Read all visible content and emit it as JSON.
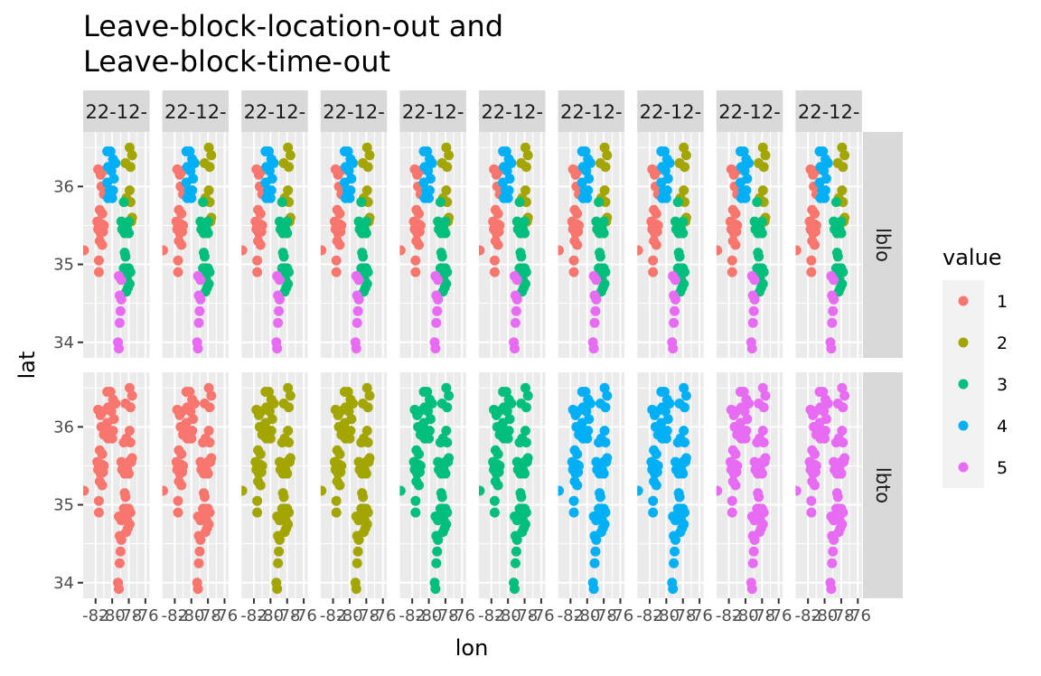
{
  "chart_data": {
    "type": "scatter",
    "title": [
      "Leave-block-location-out and",
      "Leave-block-time-out"
    ],
    "xlabel": "lon",
    "ylabel": "lat",
    "xlim": [
      -83.5,
      -75.5
    ],
    "ylim": [
      33.8,
      36.7
    ],
    "x_ticks": [
      -82,
      -80,
      -78,
      -76
    ],
    "x_tick_labels": [
      "-82",
      "-80",
      "-78",
      "-76"
    ],
    "y_ticks": [
      34,
      35,
      36
    ],
    "y_tick_labels": [
      "34",
      "35",
      "36"
    ],
    "grid": true,
    "panel_background": "#ebebeb",
    "column_strip_labels": [
      "22-12-",
      "22-12-",
      "22-12-",
      "22-12-",
      "22-12-",
      "22-12-",
      "22-12-",
      "22-12-",
      "22-12-",
      "22-12-"
    ],
    "row_strip_labels": [
      "lblo",
      "lbto"
    ],
    "legend": {
      "title": "value",
      "position": "right",
      "entries": [
        {
          "label": "1",
          "color": "#F8766D"
        },
        {
          "label": "2",
          "color": "#A3A500"
        },
        {
          "label": "3",
          "color": "#00BF7D"
        },
        {
          "label": "4",
          "color": "#00B0F6"
        },
        {
          "label": "5",
          "color": "#E76BF3"
        }
      ]
    },
    "stations": [
      {
        "lon": -83.4,
        "lat": 35.18
      },
      {
        "lon": -81.7,
        "lat": 36.22
      },
      {
        "lon": -81.4,
        "lat": 36.15
      },
      {
        "lon": -81.1,
        "lat": 36.2
      },
      {
        "lon": -81.3,
        "lat": 36.0
      },
      {
        "lon": -81.0,
        "lat": 35.9
      },
      {
        "lon": -81.5,
        "lat": 35.7
      },
      {
        "lon": -81.2,
        "lat": 35.65
      },
      {
        "lon": -81.8,
        "lat": 35.55
      },
      {
        "lon": -81.6,
        "lat": 35.5
      },
      {
        "lon": -81.3,
        "lat": 35.52
      },
      {
        "lon": -81.0,
        "lat": 35.5
      },
      {
        "lon": -81.7,
        "lat": 35.45
      },
      {
        "lon": -81.4,
        "lat": 35.4
      },
      {
        "lon": -81.1,
        "lat": 35.42
      },
      {
        "lon": -81.5,
        "lat": 35.3
      },
      {
        "lon": -81.2,
        "lat": 35.25
      },
      {
        "lon": -81.6,
        "lat": 35.05
      },
      {
        "lon": -81.6,
        "lat": 34.9
      },
      {
        "lon": -80.6,
        "lat": 36.45
      },
      {
        "lon": -80.2,
        "lat": 36.45
      },
      {
        "lon": -79.9,
        "lat": 36.35
      },
      {
        "lon": -80.5,
        "lat": 36.25
      },
      {
        "lon": -80.1,
        "lat": 36.2
      },
      {
        "lon": -79.8,
        "lat": 36.1
      },
      {
        "lon": -80.6,
        "lat": 36.05
      },
      {
        "lon": -80.3,
        "lat": 35.95
      },
      {
        "lon": -79.9,
        "lat": 35.95
      },
      {
        "lon": -80.5,
        "lat": 35.85
      },
      {
        "lon": -80.0,
        "lat": 35.85
      },
      {
        "lon": -79.6,
        "lat": 36.3
      },
      {
        "lon": -77.9,
        "lat": 36.5
      },
      {
        "lon": -77.6,
        "lat": 36.4
      },
      {
        "lon": -78.4,
        "lat": 36.3
      },
      {
        "lon": -77.8,
        "lat": 36.25
      },
      {
        "lon": -77.9,
        "lat": 35.95
      },
      {
        "lon": -78.3,
        "lat": 35.85
      },
      {
        "lon": -77.8,
        "lat": 35.8
      },
      {
        "lon": -78.6,
        "lat": 35.8
      },
      {
        "lon": -77.6,
        "lat": 35.6
      },
      {
        "lon": -77.7,
        "lat": 35.55
      },
      {
        "lon": -78.9,
        "lat": 35.55
      },
      {
        "lon": -78.6,
        "lat": 35.5
      },
      {
        "lon": -78.3,
        "lat": 35.5
      },
      {
        "lon": -78.0,
        "lat": 35.55
      },
      {
        "lon": -78.8,
        "lat": 35.45
      },
      {
        "lon": -78.5,
        "lat": 35.4
      },
      {
        "lon": -78.2,
        "lat": 35.45
      },
      {
        "lon": -78.0,
        "lat": 35.4
      },
      {
        "lon": -78.5,
        "lat": 35.15
      },
      {
        "lon": -78.4,
        "lat": 35.1
      },
      {
        "lon": -78.6,
        "lat": 34.95
      },
      {
        "lon": -78.3,
        "lat": 34.95
      },
      {
        "lon": -78.0,
        "lat": 34.95
      },
      {
        "lon": -77.8,
        "lat": 34.9
      },
      {
        "lon": -78.5,
        "lat": 34.85
      },
      {
        "lon": -78.2,
        "lat": 34.8
      },
      {
        "lon": -77.9,
        "lat": 34.75
      },
      {
        "lon": -78.3,
        "lat": 34.65
      },
      {
        "lon": -78.1,
        "lat": 34.7
      },
      {
        "lon": -79.2,
        "lat": 34.85
      },
      {
        "lon": -78.9,
        "lat": 34.8
      },
      {
        "lon": -79.1,
        "lat": 34.6
      },
      {
        "lon": -78.9,
        "lat": 34.55
      },
      {
        "lon": -79.0,
        "lat": 34.4
      },
      {
        "lon": -79.1,
        "lat": 34.25
      },
      {
        "lon": -79.3,
        "lat": 34.0
      },
      {
        "lon": -79.2,
        "lat": 33.92
      }
    ],
    "point_values": {
      "lblo": [
        1,
        1,
        1,
        1,
        1,
        1,
        1,
        1,
        1,
        1,
        1,
        1,
        1,
        1,
        1,
        1,
        1,
        1,
        1,
        4,
        4,
        4,
        4,
        4,
        4,
        4,
        4,
        4,
        4,
        4,
        4,
        2,
        2,
        2,
        2,
        2,
        2,
        2,
        3,
        2,
        2,
        3,
        3,
        3,
        3,
        3,
        3,
        3,
        3,
        3,
        3,
        3,
        3,
        3,
        3,
        3,
        3,
        3,
        3,
        3,
        5,
        5,
        5,
        5,
        5,
        5,
        5,
        5
      ],
      "lbto": [
        [
          1,
          1,
          1,
          1,
          1,
          1,
          1,
          1,
          1,
          1,
          1,
          1,
          1,
          1,
          1,
          1,
          1,
          1,
          1,
          1,
          1,
          1,
          1,
          1,
          1,
          1,
          1,
          1,
          1,
          1,
          1,
          1,
          1,
          1,
          1,
          1,
          1,
          1,
          1,
          1,
          1,
          1,
          1,
          1,
          1,
          1,
          1,
          1,
          1,
          1,
          1,
          1,
          1,
          1,
          1,
          1,
          1,
          1,
          1,
          1,
          1,
          1,
          1,
          1,
          1,
          1,
          1,
          1
        ],
        [
          1,
          1,
          1,
          1,
          1,
          1,
          1,
          1,
          1,
          1,
          1,
          1,
          1,
          1,
          1,
          1,
          1,
          1,
          1,
          1,
          1,
          1,
          1,
          1,
          1,
          1,
          1,
          1,
          1,
          1,
          1,
          1,
          1,
          1,
          1,
          1,
          1,
          1,
          1,
          1,
          1,
          1,
          1,
          1,
          1,
          1,
          1,
          1,
          1,
          1,
          1,
          1,
          1,
          1,
          1,
          1,
          1,
          1,
          1,
          1,
          1,
          1,
          1,
          1,
          1,
          1,
          1,
          1
        ],
        [
          2,
          2,
          2,
          2,
          2,
          2,
          2,
          2,
          2,
          2,
          2,
          2,
          2,
          2,
          2,
          2,
          2,
          2,
          2,
          2,
          2,
          2,
          2,
          2,
          2,
          2,
          2,
          2,
          2,
          2,
          2,
          2,
          2,
          2,
          2,
          2,
          2,
          2,
          2,
          2,
          2,
          2,
          2,
          2,
          2,
          2,
          2,
          2,
          2,
          2,
          2,
          2,
          2,
          2,
          2,
          2,
          2,
          2,
          2,
          2,
          2,
          2,
          2,
          2,
          2,
          2,
          2,
          2
        ],
        [
          2,
          2,
          2,
          2,
          2,
          2,
          2,
          2,
          2,
          2,
          2,
          2,
          2,
          2,
          2,
          2,
          2,
          2,
          2,
          2,
          2,
          2,
          2,
          2,
          2,
          2,
          2,
          2,
          2,
          2,
          2,
          2,
          2,
          2,
          2,
          2,
          2,
          2,
          2,
          2,
          2,
          2,
          2,
          2,
          2,
          2,
          2,
          2,
          2,
          2,
          2,
          2,
          2,
          2,
          2,
          2,
          2,
          2,
          2,
          2,
          2,
          2,
          2,
          2,
          2,
          2,
          2,
          2
        ],
        [
          3,
          3,
          3,
          3,
          3,
          3,
          3,
          3,
          3,
          3,
          3,
          3,
          3,
          3,
          3,
          3,
          3,
          3,
          3,
          3,
          3,
          3,
          3,
          3,
          3,
          3,
          3,
          3,
          3,
          3,
          3,
          3,
          3,
          3,
          3,
          3,
          3,
          3,
          3,
          3,
          3,
          3,
          3,
          3,
          3,
          3,
          3,
          3,
          3,
          3,
          3,
          3,
          3,
          3,
          3,
          3,
          3,
          3,
          3,
          3,
          3,
          3,
          3,
          3,
          3,
          3,
          3,
          3
        ],
        [
          3,
          3,
          3,
          3,
          3,
          3,
          3,
          3,
          3,
          3,
          3,
          3,
          3,
          3,
          3,
          3,
          3,
          3,
          3,
          3,
          3,
          3,
          3,
          3,
          3,
          3,
          3,
          3,
          3,
          3,
          3,
          3,
          3,
          3,
          3,
          3,
          3,
          3,
          3,
          3,
          3,
          3,
          3,
          3,
          3,
          3,
          3,
          3,
          3,
          3,
          3,
          3,
          3,
          3,
          3,
          3,
          3,
          3,
          3,
          3,
          3,
          3,
          3,
          3,
          3,
          3,
          3,
          3
        ],
        [
          4,
          4,
          4,
          4,
          4,
          4,
          4,
          4,
          4,
          4,
          4,
          4,
          4,
          4,
          4,
          4,
          4,
          4,
          4,
          4,
          4,
          4,
          4,
          4,
          4,
          4,
          4,
          4,
          4,
          4,
          4,
          4,
          4,
          4,
          4,
          4,
          4,
          4,
          4,
          4,
          4,
          4,
          4,
          4,
          4,
          4,
          4,
          4,
          4,
          4,
          4,
          4,
          4,
          4,
          4,
          4,
          4,
          4,
          4,
          4,
          4,
          4,
          4,
          4,
          4,
          4,
          4,
          4
        ],
        [
          4,
          4,
          4,
          4,
          4,
          4,
          4,
          4,
          4,
          4,
          4,
          4,
          4,
          4,
          4,
          4,
          4,
          4,
          4,
          4,
          4,
          4,
          4,
          4,
          4,
          4,
          4,
          4,
          4,
          4,
          4,
          4,
          4,
          4,
          4,
          4,
          4,
          4,
          4,
          4,
          4,
          4,
          4,
          4,
          4,
          4,
          4,
          4,
          4,
          4,
          4,
          4,
          4,
          4,
          4,
          4,
          4,
          4,
          4,
          4,
          4,
          4,
          4,
          4,
          4,
          4,
          4,
          4
        ],
        [
          5,
          5,
          5,
          5,
          5,
          5,
          5,
          5,
          5,
          5,
          5,
          5,
          5,
          5,
          5,
          5,
          5,
          5,
          5,
          5,
          5,
          5,
          5,
          5,
          5,
          5,
          5,
          5,
          5,
          5,
          5,
          5,
          5,
          5,
          5,
          5,
          5,
          5,
          5,
          5,
          5,
          5,
          5,
          5,
          5,
          5,
          5,
          5,
          5,
          5,
          5,
          5,
          5,
          5,
          5,
          5,
          5,
          5,
          5,
          5,
          5,
          5,
          5,
          5,
          5,
          5,
          5,
          5
        ],
        [
          5,
          5,
          5,
          5,
          5,
          5,
          5,
          5,
          5,
          5,
          5,
          5,
          5,
          5,
          5,
          5,
          5,
          5,
          5,
          5,
          5,
          5,
          5,
          5,
          5,
          5,
          5,
          5,
          5,
          5,
          5,
          5,
          5,
          5,
          5,
          5,
          5,
          5,
          5,
          5,
          5,
          5,
          5,
          5,
          5,
          5,
          5,
          5,
          5,
          5,
          5,
          5,
          5,
          5,
          5,
          5,
          5,
          5,
          5,
          5,
          5,
          5,
          5,
          5,
          5,
          5,
          5,
          5
        ]
      ]
    }
  }
}
